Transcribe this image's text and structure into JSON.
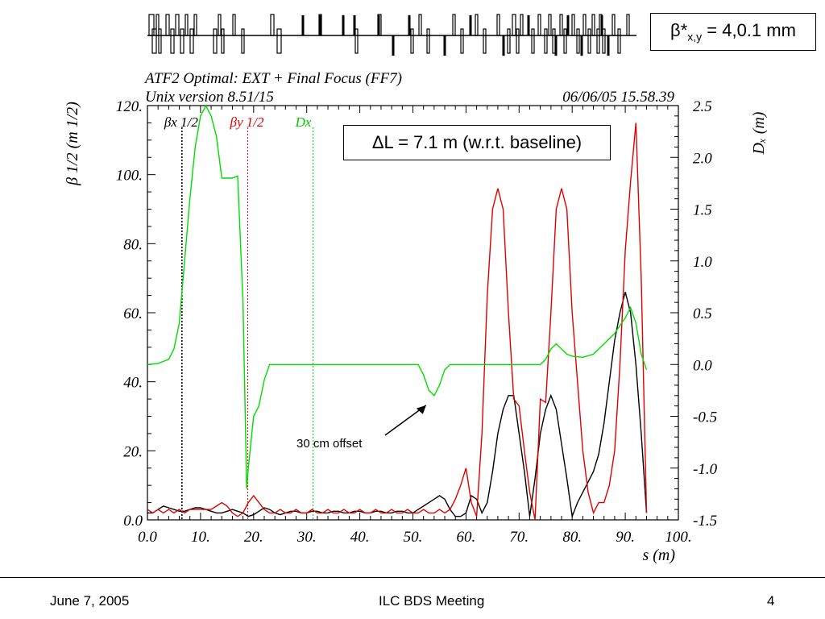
{
  "chart_data": {
    "type": "line",
    "title": "ATF2 Optimal: EXT + Final Focus (FF7)",
    "subtitle_left": "Unix version 8.51/15",
    "subtitle_right": "06/06/05  15.58.39",
    "xlabel": "s (m)",
    "ylabel_left": "β 1/2  (m 1/2)",
    "ylabel_right": "Dₓ (m)",
    "xlim": [
      0,
      100
    ],
    "ylim_left": [
      0,
      120
    ],
    "ylim_right": [
      -1.5,
      2.5
    ],
    "x_ticks": [
      "0.0",
      "10.",
      "20.",
      "30.",
      "40.",
      "50.",
      "60.",
      "70.",
      "80.",
      "90.",
      "100."
    ],
    "y_ticks_left": [
      "0.0",
      "20.",
      "40.",
      "60.",
      "80.",
      "100.",
      "120."
    ],
    "y_ticks_right": [
      "-1.5",
      "-1.0",
      "-0.5",
      "0.0",
      "0.5",
      "1.0",
      "1.5",
      "2.0",
      "2.5"
    ],
    "legend_markers": [
      {
        "name": "βx 1/2",
        "x": 6.5,
        "color": "#000000"
      },
      {
        "name": "βy 1/2",
        "x": 18.9,
        "color": "#e00000"
      },
      {
        "name": "Dx",
        "x": 31.2,
        "color": "#00cc00"
      }
    ],
    "series": [
      {
        "name": "βx 1/2",
        "axis": "left",
        "color": "#000000",
        "x": [
          0,
          1,
          2,
          3,
          4,
          5,
          6,
          7,
          8,
          9,
          10,
          11,
          12,
          13,
          14,
          15,
          16,
          17,
          18,
          19,
          20,
          21,
          22,
          23,
          24,
          25,
          26,
          27,
          28,
          29,
          30,
          31,
          32,
          33,
          34,
          35,
          36,
          37,
          38,
          39,
          40,
          41,
          42,
          43,
          44,
          45,
          46,
          47,
          48,
          49,
          50,
          51,
          52,
          53,
          54,
          55,
          56,
          57,
          58,
          59,
          60,
          61,
          62,
          63,
          64,
          65,
          66,
          67,
          68,
          69,
          70,
          71,
          72,
          73,
          74,
          75,
          76,
          77,
          78,
          79,
          80,
          81,
          82,
          83,
          84,
          85,
          86,
          87,
          88,
          89,
          90,
          91,
          92,
          93,
          94
        ],
        "values": [
          2,
          2,
          3,
          4,
          3.5,
          3,
          2.5,
          2.5,
          3,
          3.5,
          3.5,
          3,
          2.5,
          2,
          2,
          2.5,
          3,
          2.5,
          2,
          1,
          1.5,
          2.5,
          3.5,
          3,
          2,
          1.5,
          2,
          2.5,
          2.5,
          2,
          2,
          2.5,
          2.5,
          2,
          2,
          2.5,
          2.5,
          2,
          2,
          2.5,
          2.5,
          2,
          2,
          2.5,
          2.5,
          2,
          2,
          2.5,
          2.5,
          2,
          2,
          3,
          4,
          5,
          6,
          7,
          6,
          3,
          1,
          1,
          2,
          7,
          6,
          2,
          5,
          14,
          25,
          32,
          36,
          36,
          25,
          14,
          1,
          12,
          25,
          32,
          36,
          32,
          22,
          12,
          1,
          5,
          8,
          11,
          14,
          19,
          28,
          40,
          52,
          60,
          66,
          60,
          45,
          25,
          2
        ]
      },
      {
        "name": "βy 1/2",
        "axis": "left",
        "color": "#e00000",
        "x": [
          0,
          1,
          2,
          3,
          4,
          5,
          6,
          7,
          8,
          9,
          10,
          11,
          12,
          13,
          14,
          15,
          16,
          17,
          18,
          19,
          20,
          21,
          22,
          23,
          24,
          25,
          26,
          27,
          28,
          29,
          30,
          31,
          32,
          33,
          34,
          35,
          36,
          37,
          38,
          39,
          40,
          41,
          42,
          43,
          44,
          45,
          46,
          47,
          48,
          49,
          50,
          51,
          52,
          53,
          54,
          55,
          56,
          57,
          58,
          59,
          60,
          61,
          62,
          63,
          64,
          65,
          66,
          67,
          68,
          69,
          70,
          71,
          72,
          73,
          74,
          75,
          76,
          77,
          78,
          79,
          80,
          81,
          82,
          83,
          84,
          85,
          86,
          87,
          88,
          89,
          90,
          91,
          92,
          93,
          94
        ],
        "values": [
          3,
          2,
          3,
          2,
          3,
          2,
          3,
          2,
          3,
          3,
          3,
          3,
          3,
          4,
          5,
          4,
          2,
          1,
          2,
          5,
          7,
          5,
          3,
          2,
          2,
          3,
          2,
          2,
          3,
          2,
          2,
          3,
          2,
          2,
          3,
          2,
          2,
          3,
          2,
          2,
          3,
          2,
          2,
          3,
          2,
          2,
          3,
          2,
          2,
          3,
          2,
          2,
          3,
          2,
          2,
          3,
          2,
          3,
          6,
          10,
          15,
          5,
          1,
          25,
          65,
          90,
          96,
          90,
          60,
          35,
          33,
          20,
          8,
          0,
          35,
          34,
          60,
          90,
          96,
          90,
          60,
          40,
          20,
          8,
          2,
          5,
          5,
          10,
          20,
          45,
          78,
          98,
          115,
          70,
          2
        ]
      },
      {
        "name": "Dx",
        "axis": "right",
        "color": "#00dd00",
        "x": [
          0,
          2,
          4,
          5,
          6,
          7,
          8,
          9,
          10,
          11,
          12,
          13,
          14,
          15,
          16,
          17,
          18,
          18.7,
          19,
          20,
          21,
          22,
          23,
          24,
          25,
          30,
          35,
          40,
          45,
          50,
          51,
          52,
          53,
          54,
          55,
          56,
          57,
          60,
          65,
          70,
          72,
          74,
          75,
          76,
          77,
          78,
          79,
          80,
          82,
          84,
          86,
          88,
          90,
          91,
          92,
          93,
          94
        ],
        "values": [
          0,
          0.01,
          0.05,
          0.15,
          0.4,
          1.0,
          1.6,
          2.1,
          2.4,
          2.5,
          2.4,
          2.2,
          1.8,
          1.8,
          1.8,
          1.82,
          0.6,
          -1.2,
          -1.0,
          -0.5,
          -0.4,
          -0.15,
          0.0,
          0.0,
          0.0,
          0.0,
          0.0,
          0.0,
          0.0,
          0.0,
          0.0,
          -0.1,
          -0.25,
          -0.3,
          -0.2,
          -0.05,
          0.0,
          0.0,
          0.0,
          0.0,
          0.0,
          0.0,
          0.05,
          0.15,
          0.2,
          0.15,
          0.1,
          0.08,
          0.07,
          0.1,
          0.2,
          0.3,
          0.45,
          0.55,
          0.4,
          0.1,
          -0.05
        ]
      }
    ],
    "annotations": [
      {
        "text": "30 cm offset",
        "x": 54,
        "y_right": -0.3
      }
    ]
  },
  "boxes": {
    "beta_star": "β*x,y = 4,0.1 mm",
    "delta_l": "ΔL = 7.1 m (w.r.t. baseline)"
  },
  "footer": {
    "date": "June 7, 2005",
    "meeting": "ILC BDS Meeting",
    "page": "4"
  },
  "colors": {
    "beta_x": "#000000",
    "beta_y": "#e00000",
    "dispersion": "#00dd00"
  }
}
